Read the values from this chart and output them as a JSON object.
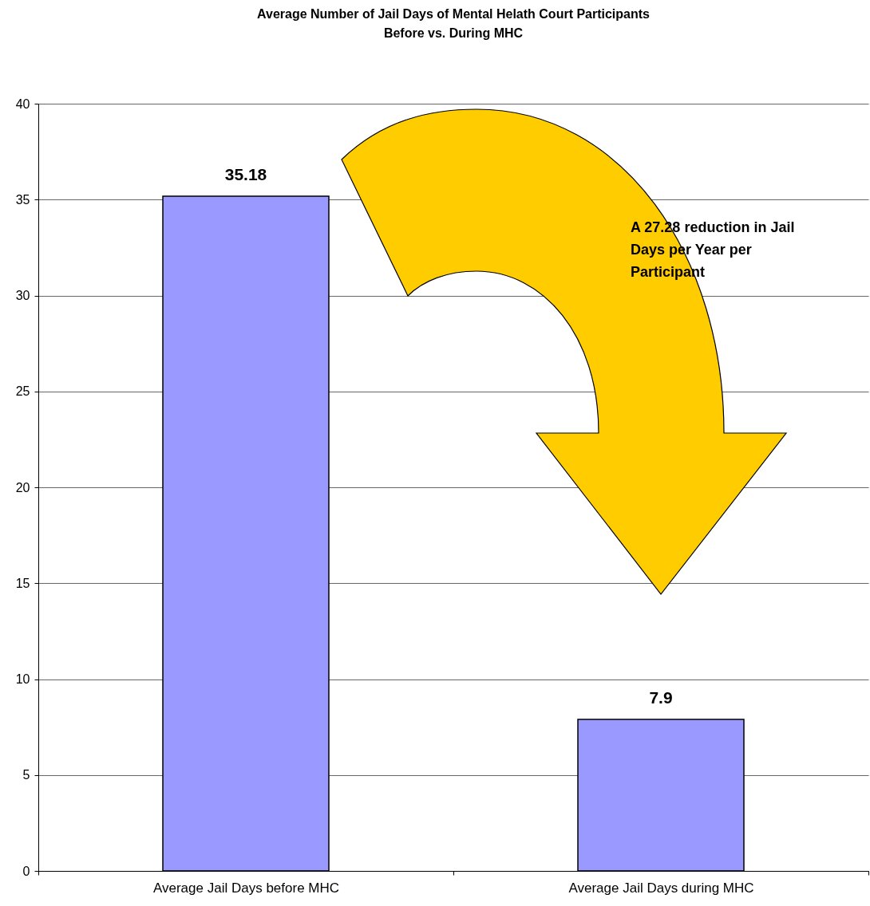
{
  "chart_data": {
    "type": "bar",
    "title": "Average Number of Jail Days of Mental Helath Court Participants\nBefore vs. During MHC",
    "categories": [
      "Average Jail Days before MHC",
      "Average Jail Days during MHC"
    ],
    "values": [
      35.18,
      7.9
    ],
    "color": "#9999ff",
    "ylim": [
      0,
      40
    ],
    "yticks": [
      0,
      5,
      10,
      15,
      20,
      25,
      30,
      35,
      40
    ],
    "grid": "y",
    "data_labels": true,
    "annotations": [
      "A 27.28 reduction in Jail Days per Year per Participant"
    ]
  }
}
